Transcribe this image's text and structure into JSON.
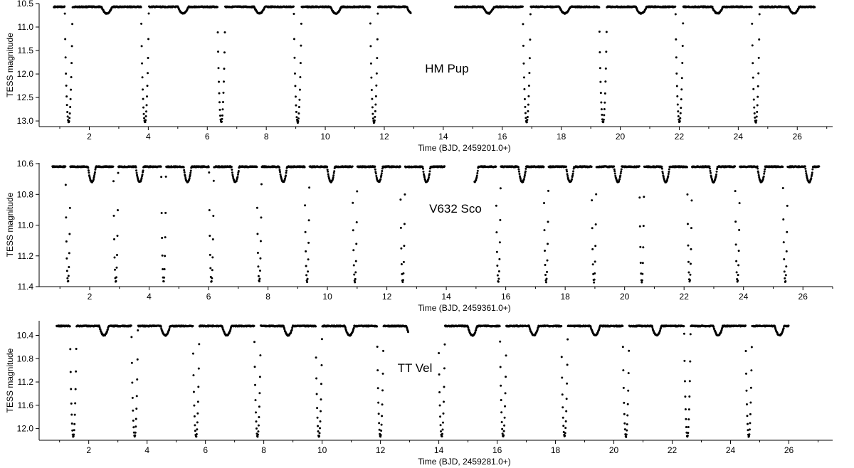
{
  "chart_data": [
    {
      "type": "scatter",
      "annotation": "HM Pup",
      "xlabel": "Time (BJD, 2459201.0+)",
      "ylabel": "TESS magnitude",
      "xlim": [
        0.3,
        27.2
      ],
      "ylim": [
        10.5,
        13.12
      ],
      "y_inverted": true,
      "xticks": [
        2,
        4,
        6,
        8,
        10,
        12,
        14,
        16,
        18,
        20,
        22,
        24,
        26
      ],
      "yticks": [
        10.5,
        11.0,
        11.5,
        12.0,
        12.5,
        13.0
      ],
      "ytick_decimals": 1,
      "segments": [
        [
          0.8,
          12.9
        ],
        [
          14.4,
          26.6
        ]
      ],
      "model": {
        "period": 2.588,
        "primary_epoch": 1.3,
        "baseline": 10.57,
        "primary_depth": 2.46,
        "primary_halfwidth": 0.13,
        "secondary_phase": 0.5,
        "secondary_depth": 0.14,
        "secondary_halfwidth": 0.18
      }
    },
    {
      "type": "scatter",
      "annotation": "V632 Sco",
      "xlabel": "Time (BJD, 2459361.0+)",
      "ylabel": "TESS magnitude",
      "xlim": [
        0.3,
        27.0
      ],
      "ylim": [
        10.595,
        11.4
      ],
      "y_inverted": true,
      "xticks": [
        2,
        4,
        6,
        8,
        10,
        12,
        14,
        16,
        18,
        20,
        22,
        24,
        26
      ],
      "yticks": [
        10.6,
        10.8,
        11.0,
        11.2,
        11.4
      ],
      "ytick_decimals": 1,
      "segments": [
        [
          0.75,
          13.95
        ],
        [
          14.95,
          26.55
        ]
      ],
      "model": {
        "period": 1.609,
        "primary_epoch": 1.27,
        "baseline": 10.62,
        "primary_depth": 0.75,
        "primary_halfwidth": 0.08,
        "secondary_phase": 0.5,
        "secondary_depth": 0.1,
        "secondary_halfwidth": 0.13
      }
    },
    {
      "type": "scatter",
      "annotation": "TT Vel",
      "xlabel": "Time (BJD, 2459281.0+)",
      "ylabel": "TESS magnitude",
      "xlim": [
        0.3,
        27.5
      ],
      "ylim": [
        10.15,
        12.2
      ],
      "y_inverted": true,
      "xticks": [
        2,
        4,
        6,
        8,
        10,
        12,
        14,
        16,
        18,
        20,
        22,
        24,
        26
      ],
      "yticks": [
        10.4,
        10.8,
        11.2,
        11.6,
        12.0
      ],
      "ytick_decimals": 1,
      "segments": [
        [
          0.9,
          12.95
        ],
        [
          14.0,
          26.0
        ]
      ],
      "model": {
        "period": 2.105,
        "primary_epoch": 1.47,
        "baseline": 10.24,
        "primary_depth": 1.9,
        "primary_halfwidth": 0.11,
        "secondary_phase": 0.5,
        "secondary_depth": 0.16,
        "secondary_halfwidth": 0.16
      }
    }
  ]
}
